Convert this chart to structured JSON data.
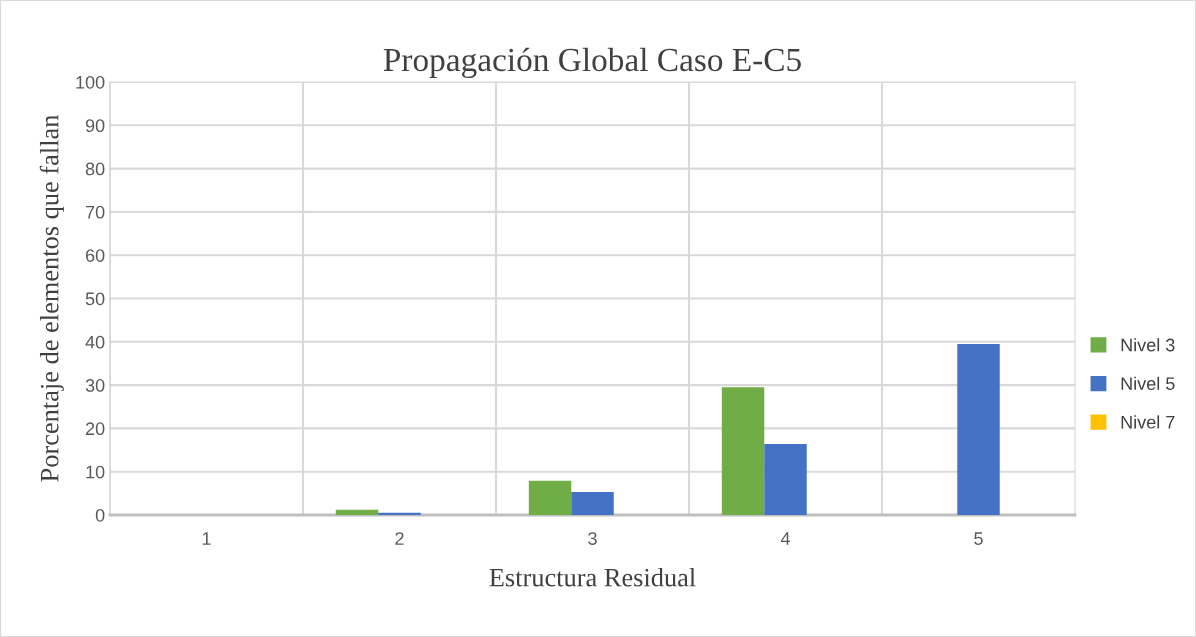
{
  "chart_data": {
    "type": "bar",
    "title": "Propagación Global Caso E-C5",
    "xlabel": "Estructura Residual",
    "ylabel": "Porcentaje de elementos que fallan",
    "categories": [
      "1",
      "2",
      "3",
      "4",
      "5"
    ],
    "series": [
      {
        "name": "Nivel 3",
        "color": "#70ad47",
        "values": [
          0,
          1.2,
          7.9,
          29.5,
          0
        ]
      },
      {
        "name": "Nivel 5",
        "color": "#4472c4",
        "values": [
          0,
          0.5,
          5.3,
          16.4,
          39.5
        ]
      },
      {
        "name": "Nivel 7",
        "color": "#ffc000",
        "values": [
          0,
          0,
          0,
          0,
          0
        ]
      }
    ],
    "ylim": [
      0,
      100
    ],
    "yticks": [
      0,
      10,
      20,
      30,
      40,
      50,
      60,
      70,
      80,
      90,
      100
    ],
    "grid": true,
    "legend": "right"
  }
}
